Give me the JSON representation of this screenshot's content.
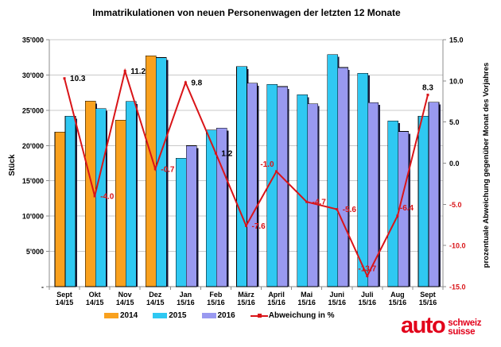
{
  "title": "Immatrikulationen von neuen Personenwagen der letzten 12 Monate",
  "chart_data": {
    "type": "bar",
    "title": "Immatrikulationen von neuen Personenwagen der letzten 12 Monate",
    "categories": [
      "Sept",
      "Okt",
      "Nov",
      "Dez",
      "Jan",
      "Feb",
      "März",
      "April",
      "Mai",
      "Juni",
      "Juli",
      "Aug",
      "Sept"
    ],
    "category_periods": [
      "14/15",
      "14/15",
      "14/15",
      "14/15",
      "15/16",
      "15/16",
      "15/16",
      "15/16",
      "15/16",
      "15/16",
      "15/16",
      "15/16",
      "15/16"
    ],
    "series": [
      {
        "name": "2014",
        "color": "#F9A11E",
        "values": [
          21900,
          26300,
          23600,
          32700,
          null,
          null,
          null,
          null,
          null,
          null,
          null,
          null,
          null
        ]
      },
      {
        "name": "2015",
        "color": "#2FC8F2",
        "values": [
          24150,
          25250,
          26250,
          32470,
          18200,
          22200,
          31200,
          28650,
          27200,
          32900,
          30250,
          23500,
          24150
        ]
      },
      {
        "name": "2016",
        "color": "#9999F0",
        "values": [
          null,
          null,
          null,
          null,
          19980,
          22470,
          28830,
          28360,
          25920,
          31060,
          26100,
          22000,
          26150
        ]
      }
    ],
    "line_series": {
      "name": "Abweichung in %",
      "color": "#D91418",
      "values": [
        10.3,
        -4.0,
        11.2,
        -0.7,
        9.8,
        1.2,
        -7.6,
        -1.0,
        -4.7,
        -5.6,
        -13.7,
        -6.4,
        8.3
      ],
      "label_positions": [
        "right",
        "right",
        "right",
        "right",
        "right",
        "right",
        "right",
        "above-left",
        "right",
        "right",
        "above",
        "above-right",
        "above"
      ]
    },
    "left_axis": {
      "label": "Stück",
      "min": 0,
      "max": 35000,
      "step": 5000,
      "zero_label": "-"
    },
    "right_axis": {
      "label": "prozentuale Abweichung gegenüber Monat des Vorjahres",
      "min": -15,
      "max": 15,
      "step": 5,
      "negative_color": "#D91418"
    },
    "legend_position": "bottom",
    "grid": true,
    "bar_shadow_color": "#1D1D40",
    "grid_color": "#C9C9C9",
    "axis_color": "#8C8C8C"
  },
  "logo": {
    "brand": "auto",
    "sub1": "schweiz",
    "sub2": "suisse",
    "color": "#E2001A"
  }
}
